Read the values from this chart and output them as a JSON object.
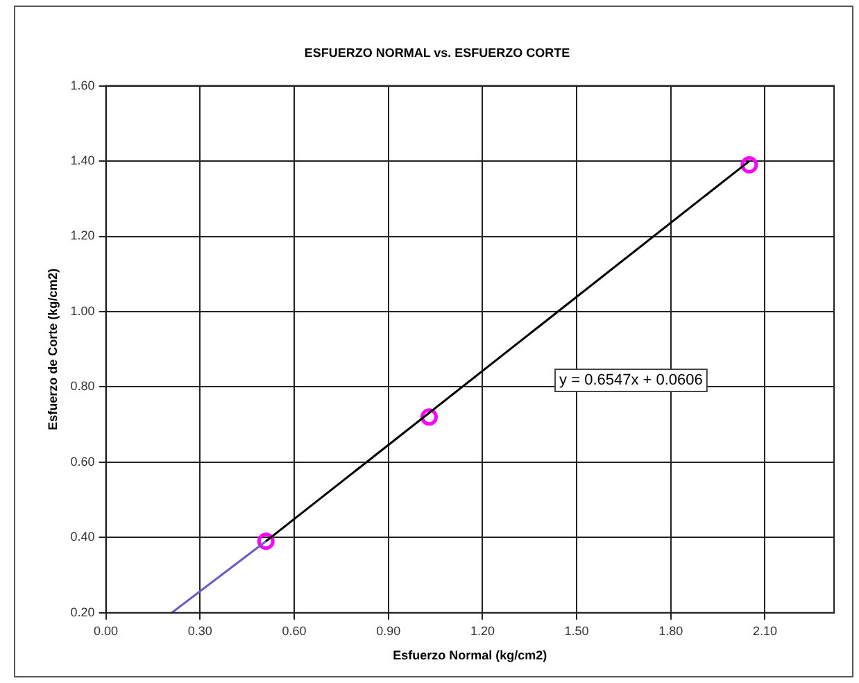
{
  "chart_data": {
    "type": "scatter",
    "title": "ESFUERZO NORMAL vs. ESFUERZO CORTE",
    "xlabel": "Esfuerzo Normal (kg/cm2)",
    "ylabel": "Esfuerzo de Corte (kg/cm2)",
    "xlim": [
      0,
      2.32
    ],
    "xticks": [
      {
        "value": 0,
        "label": "0.00"
      },
      {
        "value": 0.3,
        "label": "0.30"
      },
      {
        "value": 0.6,
        "label": "0.60"
      },
      {
        "value": 0.9,
        "label": "0.90"
      },
      {
        "value": 1.2,
        "label": "1.20"
      },
      {
        "value": 1.5,
        "label": "1.50"
      },
      {
        "value": 1.8,
        "label": "1.80"
      },
      {
        "value": 2.1,
        "label": "2.10"
      }
    ],
    "ylim": [
      0.2,
      1.6
    ],
    "yticks": [
      {
        "value": 0.2,
        "label": "0.20"
      },
      {
        "value": 0.4,
        "label": "0.40"
      },
      {
        "value": 0.6,
        "label": "0.60"
      },
      {
        "value": 0.8,
        "label": "0.80"
      },
      {
        "value": 1.0,
        "label": "1.00"
      },
      {
        "value": 1.2,
        "label": "1.20"
      },
      {
        "value": 1.4,
        "label": "1.40"
      },
      {
        "value": 1.6,
        "label": "1.60"
      }
    ],
    "grid": true,
    "legend": false,
    "series": [
      {
        "type": "line",
        "color": "#6a5acd",
        "marker": "none",
        "x": [
          0.21,
          0.51
        ],
        "values": [
          0.2,
          0.39
        ]
      },
      {
        "type": "line",
        "color": "#000000",
        "marker": "none",
        "x": [
          0.51,
          2.05
        ],
        "values": [
          0.39,
          1.4
        ]
      },
      {
        "type": "scatter",
        "color": "#ff00ff",
        "marker": "circle",
        "x": [
          0.51,
          1.03,
          2.05
        ],
        "values": [
          0.39,
          0.72,
          1.39
        ]
      }
    ],
    "annotations": [
      "y = 0.6547x + 0.0606"
    ]
  }
}
